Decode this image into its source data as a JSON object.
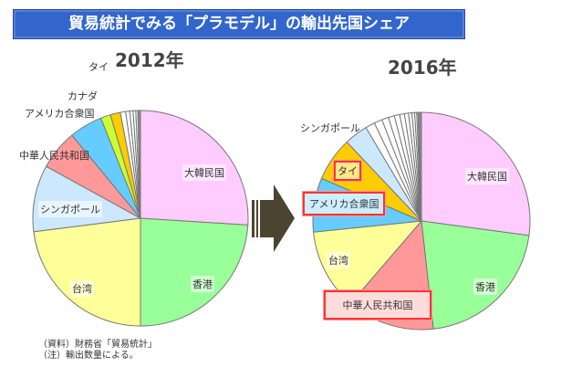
{
  "title": "貿易統計でみる「プラモデル」の輸出先国シェア",
  "chart_data": [
    {
      "type": "pie",
      "title": "2012年",
      "start": "top",
      "direction": "clockwise",
      "slices": [
        {
          "label": "大韓民国",
          "value": 26,
          "color": "#ffccff"
        },
        {
          "label": "香港",
          "value": 24,
          "color": "#99ff99"
        },
        {
          "label": "台湾",
          "value": 23,
          "color": "#ffff99"
        },
        {
          "label": "シンガポール",
          "value": 10,
          "color": "#cce8ff"
        },
        {
          "label": "中華人民共和国",
          "value": 6,
          "color": "#ff9999"
        },
        {
          "label": "アメリカ合衆国",
          "value": 5,
          "color": "#66ccff"
        },
        {
          "label": "カナダ",
          "value": 1.5,
          "color": "#ccff33"
        },
        {
          "label": "タイ",
          "value": 1.5,
          "color": "#ffcc00"
        },
        {
          "label": "",
          "value": 0.8,
          "color": "#ffffff"
        },
        {
          "label": "",
          "value": 0.6,
          "color": "#ffffff"
        },
        {
          "label": "",
          "value": 0.5,
          "color": "#ffffff"
        },
        {
          "label": "",
          "value": 0.4,
          "color": "#ffffff"
        },
        {
          "label": "",
          "value": 0.3,
          "color": "#ffffff"
        },
        {
          "label": "",
          "value": 0.4,
          "color": "#888888"
        }
      ]
    },
    {
      "type": "pie",
      "title": "2016年",
      "start": "top",
      "direction": "clockwise",
      "slices": [
        {
          "label": "大韓民国",
          "value": 27,
          "color": "#ffccff"
        },
        {
          "label": "香港",
          "value": 21,
          "color": "#99ff99"
        },
        {
          "label": "中華人民共和国",
          "value": 13,
          "color": "#ff9999"
        },
        {
          "label": "台湾",
          "value": 12,
          "color": "#ffff99"
        },
        {
          "label": "アメリカ合衆国",
          "value": 8,
          "color": "#66ccff"
        },
        {
          "label": "タイ",
          "value": 6.5,
          "color": "#ffcc00"
        },
        {
          "label": "シンガポール",
          "value": 3.5,
          "color": "#cce8ff"
        },
        {
          "label": "",
          "value": 1.4,
          "color": "#ffffff"
        },
        {
          "label": "",
          "value": 1.2,
          "color": "#ffffff"
        },
        {
          "label": "",
          "value": 1.0,
          "color": "#ffffff"
        },
        {
          "label": "",
          "value": 0.9,
          "color": "#ffffff"
        },
        {
          "label": "",
          "value": 0.8,
          "color": "#ffffff"
        },
        {
          "label": "",
          "value": 0.7,
          "color": "#ffffff"
        },
        {
          "label": "",
          "value": 0.6,
          "color": "#ffffff"
        },
        {
          "label": "",
          "value": 0.5,
          "color": "#ffffff"
        },
        {
          "label": "",
          "value": 0.4,
          "color": "#ffffff"
        },
        {
          "label": "",
          "value": 0.3,
          "color": "#ffffff"
        },
        {
          "label": "",
          "value": 0.2,
          "color": "#ffffff"
        },
        {
          "label": "",
          "value": 0.5,
          "color": "#888888"
        }
      ]
    }
  ],
  "notes": [
    "（資料）財務省「貿易統計」",
    "（注）輸出数量による。"
  ]
}
